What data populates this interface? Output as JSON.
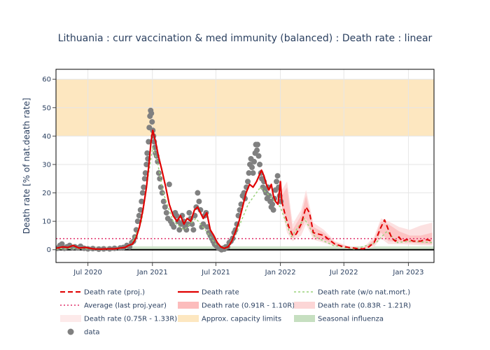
{
  "chart_data": {
    "type": "line",
    "title": "Lithuania : curr vaccination & med immunity (balanced) : Death rate : linear",
    "xlabel": "",
    "ylabel": "Death rate [% of nat.death rate]",
    "xlim": [
      "2020-04-01",
      "2023-03-15"
    ],
    "ylim": [
      -4.5,
      63.5
    ],
    "x_ticks": [
      {
        "date": "2020-07-01",
        "label": "Jul 2020"
      },
      {
        "date": "2021-01-01",
        "label": "Jan 2021"
      },
      {
        "date": "2021-07-01",
        "label": "Jul 2021"
      },
      {
        "date": "2022-01-01",
        "label": "Jan 2022"
      },
      {
        "date": "2022-07-01",
        "label": "Jul 2022"
      },
      {
        "date": "2023-01-01",
        "label": "Jan 2023"
      }
    ],
    "y_ticks": [
      0,
      10,
      20,
      30,
      40,
      50,
      60
    ],
    "grid": true,
    "legend_position": "bottom",
    "colors": {
      "proj": "#e00000",
      "death_rate": "#e00000",
      "wo_natmort": "#9ad27a",
      "average": "#e0306a",
      "band_91_110": "#fcbcbc",
      "band_83_121": "#fcd6d6",
      "band_75_133": "#fdeaea",
      "capacity": "#fde7c0",
      "seasonal_flu": "#c6dfc0",
      "data": "#808080"
    },
    "capacity_band": [
      40,
      60
    ],
    "seasonal_influenza_band": [
      0,
      1.2
    ],
    "average_last_proj_year": 3.9,
    "series": [
      {
        "name": "Death rate",
        "x": [
          "2020-04-01",
          "2020-04-20",
          "2020-05-05",
          "2020-05-20",
          "2020-06-05",
          "2020-06-25",
          "2020-07-15",
          "2020-08-05",
          "2020-08-25",
          "2020-09-15",
          "2020-10-01",
          "2020-10-15",
          "2020-10-25",
          "2020-11-05",
          "2020-11-15",
          "2020-11-25",
          "2020-12-05",
          "2020-12-15",
          "2020-12-22",
          "2020-12-28",
          "2021-01-02",
          "2021-01-10",
          "2021-01-18",
          "2021-01-28",
          "2021-02-08",
          "2021-02-18",
          "2021-03-01",
          "2021-03-12",
          "2021-03-22",
          "2021-04-01",
          "2021-04-10",
          "2021-04-20",
          "2021-05-01",
          "2021-05-10",
          "2021-05-18",
          "2021-05-26",
          "2021-06-05",
          "2021-06-15",
          "2021-06-25",
          "2021-07-05",
          "2021-07-15",
          "2021-07-25",
          "2021-08-05",
          "2021-08-15",
          "2021-08-25",
          "2021-09-05",
          "2021-09-15",
          "2021-09-25",
          "2021-10-05",
          "2021-10-15",
          "2021-10-25",
          "2021-11-01",
          "2021-11-08",
          "2021-11-15",
          "2021-11-22",
          "2021-11-29",
          "2021-12-06",
          "2021-12-12",
          "2021-12-18",
          "2021-12-25",
          "2022-01-01",
          "2022-01-05"
        ],
        "y": [
          0.5,
          1.0,
          0.8,
          1.5,
          0.6,
          0.8,
          0.3,
          0.2,
          0.3,
          0.3,
          0.6,
          0.8,
          1.5,
          2.0,
          4.0,
          8.0,
          14.0,
          22.0,
          30.0,
          38.0,
          42.0,
          38.0,
          33.0,
          28.0,
          22.0,
          16.0,
          12.0,
          10.0,
          12.0,
          9.0,
          11.0,
          10.0,
          14.0,
          15.0,
          13.0,
          11.0,
          13.0,
          7.0,
          5.0,
          2.5,
          1.0,
          0.5,
          1.0,
          3.0,
          6.0,
          10.0,
          15.0,
          20.0,
          23.0,
          22.0,
          24.0,
          26.0,
          28.0,
          26.0,
          23.0,
          21.0,
          23.0,
          19.0,
          17.0,
          16.0,
          24.0,
          17.0
        ]
      },
      {
        "name": "Death rate (proj.)",
        "x": [
          "2022-01-05",
          "2022-01-15",
          "2022-01-25",
          "2022-02-05",
          "2022-02-15",
          "2022-03-01",
          "2022-03-15",
          "2022-03-25",
          "2022-04-05",
          "2022-04-20",
          "2022-05-05",
          "2022-05-20",
          "2022-06-05",
          "2022-06-25",
          "2022-07-15",
          "2022-08-05",
          "2022-08-25",
          "2022-09-10",
          "2022-09-25",
          "2022-10-05",
          "2022-10-15",
          "2022-10-25",
          "2022-11-05",
          "2022-11-15",
          "2022-11-25",
          "2022-12-05",
          "2022-12-15",
          "2022-12-25",
          "2023-01-05",
          "2023-01-15",
          "2023-01-25",
          "2023-02-05",
          "2023-02-15",
          "2023-02-25",
          "2023-03-10"
        ],
        "y": [
          17.0,
          12.0,
          8.0,
          5.0,
          5.5,
          9.0,
          15.0,
          13.0,
          6.0,
          5.5,
          5.0,
          3.5,
          2.0,
          1.2,
          0.8,
          0.5,
          0.3,
          1.0,
          2.5,
          5.0,
          8.0,
          10.5,
          7.0,
          4.0,
          3.0,
          4.5,
          3.0,
          3.5,
          3.5,
          3.0,
          3.0,
          3.0,
          3.5,
          3.5,
          3.0
        ]
      },
      {
        "name": "Death rate (w/o nat.mort.)",
        "x": [
          "2020-04-01",
          "2020-06-01",
          "2020-08-01",
          "2020-10-01",
          "2020-11-01",
          "2020-12-01",
          "2020-12-20",
          "2021-01-02",
          "2021-01-15",
          "2021-02-01",
          "2021-03-01",
          "2021-04-01",
          "2021-05-05",
          "2021-06-01",
          "2021-07-01",
          "2021-08-01",
          "2021-09-01",
          "2021-10-01",
          "2021-11-05",
          "2021-12-01",
          "2022-01-01",
          "2022-02-01",
          "2022-03-10",
          "2022-04-10",
          "2022-06-01",
          "2022-08-01",
          "2022-10-01",
          "2022-11-01",
          "2022-12-01",
          "2023-01-01",
          "2023-03-10"
        ],
        "y": [
          0.2,
          0.5,
          0.1,
          0.4,
          1.5,
          10.0,
          26.0,
          36.0,
          31.0,
          20.0,
          10.0,
          7.0,
          11.0,
          7.0,
          1.8,
          0.5,
          7.0,
          16.0,
          22.0,
          19.0,
          15.0,
          4.5,
          11.0,
          4.5,
          1.5,
          0.2,
          2.5,
          6.5,
          2.5,
          3.0,
          2.5
        ]
      }
    ],
    "projection_bands": {
      "x": [
        "2022-01-05",
        "2022-01-20",
        "2022-02-05",
        "2022-03-01",
        "2022-03-15",
        "2022-04-05",
        "2022-05-05",
        "2022-06-05",
        "2022-07-15",
        "2022-08-25",
        "2022-09-25",
        "2022-10-15",
        "2022-11-05",
        "2022-12-05",
        "2023-01-05",
        "2023-02-05",
        "2023-03-10"
      ],
      "band_91_110_lo": [
        15.0,
        10.0,
        4.0,
        7.0,
        11.0,
        4.5,
        3.5,
        1.6,
        0.6,
        0.2,
        1.8,
        6.0,
        3.0,
        2.8,
        2.5,
        2.2,
        2.0
      ],
      "band_91_110_hi": [
        19.0,
        22.0,
        7.0,
        12.0,
        19.0,
        8.0,
        6.0,
        2.6,
        1.0,
        0.5,
        3.5,
        10.0,
        9.0,
        6.5,
        5.0,
        5.0,
        6.0
      ],
      "band_75_133_lo": [
        14.0,
        6.0,
        3.0,
        5.0,
        9.0,
        3.5,
        2.5,
        1.2,
        0.4,
        0.1,
        1.0,
        4.0,
        2.0,
        2.0,
        1.8,
        1.6,
        1.5
      ],
      "band_75_133_hi": [
        21.0,
        24.0,
        9.0,
        14.0,
        21.0,
        9.5,
        7.0,
        3.0,
        1.2,
        0.7,
        4.5,
        11.0,
        10.0,
        8.0,
        7.0,
        8.5,
        9.5
      ]
    },
    "data_points": [
      [
        "2020-04-05",
        0.5
      ],
      [
        "2020-04-12",
        1.5
      ],
      [
        "2020-04-18",
        2.0
      ],
      [
        "2020-04-25",
        0.5
      ],
      [
        "2020-05-02",
        1.0
      ],
      [
        "2020-05-10",
        1.5
      ],
      [
        "2020-05-18",
        0.8
      ],
      [
        "2020-05-25",
        1.0
      ],
      [
        "2020-06-02",
        0.6
      ],
      [
        "2020-06-10",
        1.2
      ],
      [
        "2020-06-20",
        0.5
      ],
      [
        "2020-07-01",
        0.3
      ],
      [
        "2020-07-15",
        0.4
      ],
      [
        "2020-08-01",
        0.2
      ],
      [
        "2020-08-15",
        0.3
      ],
      [
        "2020-09-01",
        0.3
      ],
      [
        "2020-09-15",
        0.5
      ],
      [
        "2020-10-01",
        0.6
      ],
      [
        "2020-10-10",
        0.8
      ],
      [
        "2020-10-20",
        1.5
      ],
      [
        "2020-10-28",
        1.0
      ],
      [
        "2020-11-03",
        2.5
      ],
      [
        "2020-11-08",
        3.0
      ],
      [
        "2020-11-12",
        4.5
      ],
      [
        "2020-11-16",
        7.0
      ],
      [
        "2020-11-20",
        10.0
      ],
      [
        "2020-11-24",
        12.0
      ],
      [
        "2020-11-28",
        14.0
      ],
      [
        "2020-12-01",
        17.0
      ],
      [
        "2020-12-04",
        20.0
      ],
      [
        "2020-12-07",
        22.0
      ],
      [
        "2020-12-10",
        25.0
      ],
      [
        "2020-12-12",
        27.0
      ],
      [
        "2020-12-15",
        30.0
      ],
      [
        "2020-12-17",
        34.0
      ],
      [
        "2020-12-19",
        32.0
      ],
      [
        "2020-12-21",
        38.0
      ],
      [
        "2020-12-23",
        43.0
      ],
      [
        "2020-12-25",
        47.0
      ],
      [
        "2020-12-27",
        49.0
      ],
      [
        "2020-12-29",
        48.0
      ],
      [
        "2020-12-31",
        45.0
      ],
      [
        "2021-01-02",
        42.0
      ],
      [
        "2021-01-04",
        40.0
      ],
      [
        "2021-01-06",
        38.0
      ],
      [
        "2021-01-08",
        36.0
      ],
      [
        "2021-01-10",
        34.0
      ],
      [
        "2021-01-13",
        33.0
      ],
      [
        "2021-01-16",
        31.0
      ],
      [
        "2021-01-19",
        27.0
      ],
      [
        "2021-01-22",
        25.0
      ],
      [
        "2021-01-25",
        22.0
      ],
      [
        "2021-01-29",
        20.0
      ],
      [
        "2021-02-02",
        17.0
      ],
      [
        "2021-02-06",
        15.0
      ],
      [
        "2021-02-10",
        13.0
      ],
      [
        "2021-02-14",
        11.0
      ],
      [
        "2021-02-18",
        23.0
      ],
      [
        "2021-02-22",
        10.0
      ],
      [
        "2021-02-26",
        9.0
      ],
      [
        "2021-03-03",
        8.0
      ],
      [
        "2021-03-07",
        13.0
      ],
      [
        "2021-03-11",
        12.0
      ],
      [
        "2021-03-15",
        10.0
      ],
      [
        "2021-03-19",
        7.0
      ],
      [
        "2021-03-23",
        9.0
      ],
      [
        "2021-03-27",
        12.0
      ],
      [
        "2021-03-31",
        10.0
      ],
      [
        "2021-04-04",
        8.0
      ],
      [
        "2021-04-08",
        7.0
      ],
      [
        "2021-04-12",
        9.0
      ],
      [
        "2021-04-16",
        13.0
      ],
      [
        "2021-04-20",
        11.0
      ],
      [
        "2021-04-24",
        9.0
      ],
      [
        "2021-04-28",
        7.0
      ],
      [
        "2021-05-02",
        12.0
      ],
      [
        "2021-05-06",
        15.0
      ],
      [
        "2021-05-10",
        20.0
      ],
      [
        "2021-05-14",
        17.0
      ],
      [
        "2021-05-18",
        14.0
      ],
      [
        "2021-05-22",
        8.0
      ],
      [
        "2021-05-26",
        9.0
      ],
      [
        "2021-05-30",
        12.0
      ],
      [
        "2021-06-03",
        13.0
      ],
      [
        "2021-06-07",
        8.0
      ],
      [
        "2021-06-11",
        6.0
      ],
      [
        "2021-06-15",
        5.0
      ],
      [
        "2021-06-19",
        4.0
      ],
      [
        "2021-06-23",
        3.0
      ],
      [
        "2021-06-27",
        2.0
      ],
      [
        "2021-07-01",
        1.5
      ],
      [
        "2021-07-05",
        1.0
      ],
      [
        "2021-07-09",
        0.5
      ],
      [
        "2021-07-13",
        0.5
      ],
      [
        "2021-07-17",
        0.0
      ],
      [
        "2021-07-21",
        0.5
      ],
      [
        "2021-07-25",
        0.2
      ],
      [
        "2021-07-29",
        1.0
      ],
      [
        "2021-08-03",
        1.0
      ],
      [
        "2021-08-08",
        2.5
      ],
      [
        "2021-08-13",
        3.0
      ],
      [
        "2021-08-18",
        4.0
      ],
      [
        "2021-08-22",
        6.0
      ],
      [
        "2021-08-26",
        7.0
      ],
      [
        "2021-08-30",
        9.0
      ],
      [
        "2021-09-03",
        12.0
      ],
      [
        "2021-09-07",
        14.0
      ],
      [
        "2021-09-11",
        16.0
      ],
      [
        "2021-09-15",
        19.0
      ],
      [
        "2021-09-19",
        20.0
      ],
      [
        "2021-09-22",
        18.0
      ],
      [
        "2021-09-26",
        22.0
      ],
      [
        "2021-09-30",
        24.0
      ],
      [
        "2021-10-03",
        27.0
      ],
      [
        "2021-10-06",
        30.0
      ],
      [
        "2021-10-09",
        32.0
      ],
      [
        "2021-10-12",
        29.0
      ],
      [
        "2021-10-15",
        27.0
      ],
      [
        "2021-10-18",
        31.0
      ],
      [
        "2021-10-21",
        34.0
      ],
      [
        "2021-10-23",
        37.0
      ],
      [
        "2021-10-26",
        35.0
      ],
      [
        "2021-10-28",
        37.0
      ],
      [
        "2021-10-31",
        33.0
      ],
      [
        "2021-11-03",
        30.0
      ],
      [
        "2021-11-06",
        27.0
      ],
      [
        "2021-11-09",
        25.0
      ],
      [
        "2021-11-12",
        22.0
      ],
      [
        "2021-11-15",
        24.0
      ],
      [
        "2021-11-18",
        21.0
      ],
      [
        "2021-11-21",
        20.0
      ],
      [
        "2021-11-24",
        18.0
      ],
      [
        "2021-11-27",
        22.0
      ],
      [
        "2021-11-30",
        19.0
      ],
      [
        "2021-12-03",
        17.0
      ],
      [
        "2021-12-06",
        15.0
      ],
      [
        "2021-12-09",
        16.0
      ],
      [
        "2021-12-12",
        14.0
      ],
      [
        "2021-12-15",
        18.0
      ],
      [
        "2021-12-18",
        21.0
      ],
      [
        "2021-12-21",
        24.0
      ],
      [
        "2021-12-24",
        26.0
      ],
      [
        "2021-12-27",
        22.0
      ],
      [
        "2021-12-30",
        19.0
      ],
      [
        "2022-01-02",
        17.0
      ]
    ],
    "legend": [
      {
        "label": "Death rate (proj.)",
        "kind": "dash",
        "color_key": "proj"
      },
      {
        "label": "Death rate",
        "kind": "line",
        "color_key": "death_rate"
      },
      {
        "label": "Death rate (w/o nat.mort.)",
        "kind": "dot",
        "color_key": "wo_natmort"
      },
      {
        "label": "Average (last proj.year)",
        "kind": "dotline",
        "color_key": "average"
      },
      {
        "label": "Death rate (0.91R - 1.10R)",
        "kind": "rect",
        "color_key": "band_91_110"
      },
      {
        "label": "Death rate (0.83R - 1.21R)",
        "kind": "rect",
        "color_key": "band_83_121"
      },
      {
        "label": "Death rate (0.75R - 1.33R)",
        "kind": "rect",
        "color_key": "band_75_133"
      },
      {
        "label": "Approx. capacity limits",
        "kind": "rect",
        "color_key": "capacity"
      },
      {
        "label": "Seasonal influenza",
        "kind": "rect",
        "color_key": "seasonal_flu"
      },
      {
        "label": "data",
        "kind": "marker",
        "color_key": "data"
      }
    ]
  }
}
